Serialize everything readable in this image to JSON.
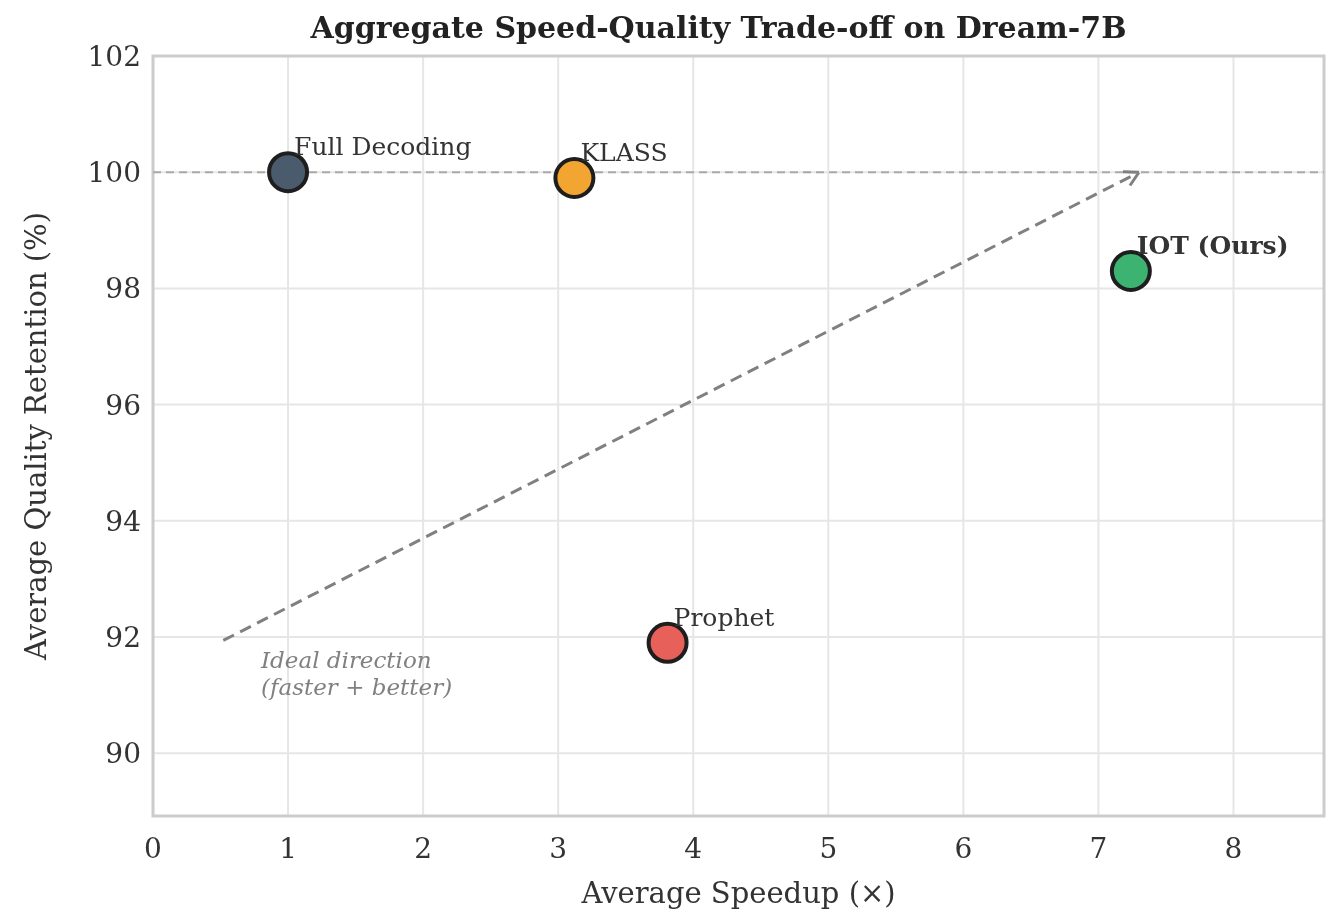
{
  "chart_data": {
    "type": "scatter",
    "title": "Aggregate Speed-Quality Trade-off on Dream-7B",
    "xlabel": "Average Speedup (×)",
    "ylabel": "Average Quality Retention (%)",
    "series": [
      {
        "name": "Full Decoding",
        "color": "#4b5b6e",
        "x": [
          1
        ],
        "values": [
          100
        ]
      },
      {
        "name": "KLASS",
        "color": "#f2a531",
        "x": [
          3.12
        ],
        "values": [
          99.9
        ]
      },
      {
        "name": "Prophet",
        "color": "#e8605a",
        "x": [
          3.81
        ],
        "values": [
          91.9
        ]
      },
      {
        "name": "IOT (Ours)",
        "color": "#3cb371",
        "x": [
          7.24
        ],
        "values": [
          98.3
        ]
      }
    ],
    "xlim": [
      0,
      8.67
    ],
    "xticks": [
      0,
      1,
      2,
      3,
      4,
      5,
      6,
      7,
      8
    ],
    "ylim": [
      88.92,
      102
    ],
    "yticks": [
      90,
      92,
      94,
      96,
      98,
      100,
      102
    ],
    "ref_lines": [
      {
        "axis": "y",
        "value": 100,
        "color": "#aaaaaa",
        "line_style": "dashed"
      }
    ],
    "annotations": [
      "Ideal direction\n(faster + better)"
    ],
    "grid": true,
    "marker": "circle"
  }
}
